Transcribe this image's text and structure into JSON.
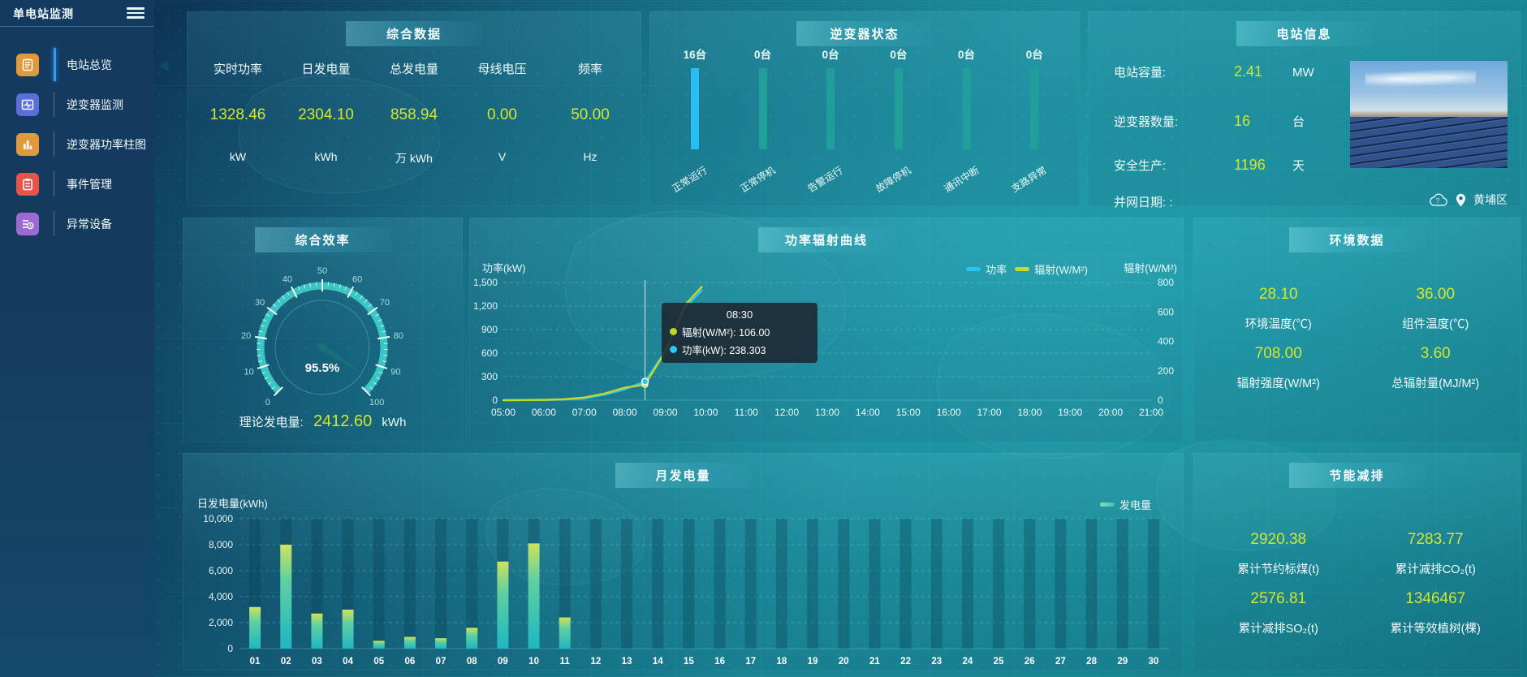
{
  "app": {
    "title": "单电站监测",
    "location": "黄埔区"
  },
  "sidebar": {
    "items": [
      {
        "id": "station-overview",
        "label": "电站总览",
        "icon": "document-icon",
        "color": "#e09a3c",
        "active": true
      },
      {
        "id": "inverter-monitor",
        "label": "逆变器监测",
        "icon": "monitor-pulse-icon",
        "color": "#5a6fd8",
        "active": false
      },
      {
        "id": "inverter-power-bars",
        "label": "逆变器功率柱图",
        "icon": "bar-chart-icon",
        "color": "#e09a3c",
        "active": false
      },
      {
        "id": "event-management",
        "label": "事件管理",
        "icon": "clipboard-icon",
        "color": "#e8534a",
        "active": false
      },
      {
        "id": "abnormal-devices",
        "label": "异常设备",
        "icon": "device-list-icon",
        "color": "#9b6bd3",
        "active": false
      }
    ]
  },
  "summary": {
    "title": "综合数据",
    "metrics": [
      {
        "label": "实时功率",
        "value": "1328.46",
        "unit": "kW"
      },
      {
        "label": "日发电量",
        "value": "2304.10",
        "unit": "kWh"
      },
      {
        "label": "总发电量",
        "value": "858.94",
        "unit": "万 kWh"
      },
      {
        "label": "母线电压",
        "value": "0.00",
        "unit": "V"
      },
      {
        "label": "频率",
        "value": "50.00",
        "unit": "Hz"
      }
    ]
  },
  "inverter_status": {
    "title": "逆变器状态",
    "unit_suffix": "台",
    "items": [
      {
        "count": "16台",
        "label": "正常运行",
        "highlight": true
      },
      {
        "count": "0台",
        "label": "正常停机",
        "highlight": false
      },
      {
        "count": "0台",
        "label": "告警运行",
        "highlight": false
      },
      {
        "count": "0台",
        "label": "故障停机",
        "highlight": false
      },
      {
        "count": "0台",
        "label": "通讯中断",
        "highlight": false
      },
      {
        "count": "0台",
        "label": "支路异常",
        "highlight": false
      }
    ]
  },
  "station_info": {
    "title": "电站信息",
    "rows": [
      {
        "label": "电站容量:",
        "value": "2.41",
        "unit": "MW"
      },
      {
        "label": "逆变器数量:",
        "value": "16",
        "unit": "台"
      },
      {
        "label": "安全生产:",
        "value": "1196",
        "unit": "天"
      },
      {
        "label": "并网日期: :",
        "value": "",
        "unit": ""
      }
    ]
  },
  "efficiency": {
    "title": "综合效率",
    "value_display": "95.5%",
    "theoretical_label": "理论发电量:",
    "theoretical_value": "2412.60",
    "theoretical_unit": "kWh"
  },
  "power_curve": {
    "title": "功率辐射曲线"
  },
  "monthly": {
    "title": "月发电量"
  },
  "environment": {
    "title": "环境数据",
    "metrics": [
      {
        "value": "28.10",
        "label": "环境温度(℃)"
      },
      {
        "value": "36.00",
        "label": "组件温度(℃)"
      },
      {
        "value": "708.00",
        "label": "辐射强度(W/M²)"
      },
      {
        "value": "3.60",
        "label": "总辐射量(MJ/M²)"
      }
    ]
  },
  "saving": {
    "title": "节能减排",
    "metrics": [
      {
        "value": "2920.38",
        "label": "累计节约标煤(t)"
      },
      {
        "value": "7283.77",
        "label": "累计减排CO₂(t)"
      },
      {
        "value": "2576.81",
        "label": "累计减排SO₂(t)"
      },
      {
        "value": "1346467",
        "label": "累计等效植树(棵)"
      }
    ]
  },
  "colors": {
    "value_yellow": "#d3e62e",
    "bar_active_blue": "#29bdf5",
    "bar_teal": "#1f9e9a",
    "line_power": "#2ec7f0",
    "line_radiation": "#c3d62a",
    "gauge_teal": "#3bc6c3"
  },
  "chart_data": [
    {
      "id": "efficiency-gauge",
      "type": "gauge",
      "title": "综合效率",
      "min": 0,
      "max": 100,
      "tick_step": 10,
      "value": 95.5,
      "value_display": "95.5%",
      "color": "#3bc6c3"
    },
    {
      "id": "inverter-status-bars",
      "type": "bar",
      "title": "逆变器状态",
      "categories": [
        "正常运行",
        "正常停机",
        "告警运行",
        "故障停机",
        "通讯中断",
        "支路异常"
      ],
      "values": [
        16,
        0,
        0,
        0,
        0,
        0
      ],
      "unit": "台"
    },
    {
      "id": "power-radiation-curve",
      "type": "line",
      "title": "功率辐射曲线",
      "x_hours": [
        5,
        5.5,
        6,
        6.5,
        7,
        7.5,
        8,
        8.5,
        9,
        9.5,
        9.9
      ],
      "series": [
        {
          "name": "功率",
          "axis": "left",
          "unit": "kW",
          "color": "#2ec7f0",
          "values": [
            0,
            1,
            3,
            8,
            25,
            70,
            140,
            238.303,
            620,
            1180,
            1400
          ]
        },
        {
          "name": "辐射(W/M²)",
          "axis": "right",
          "unit": "W/M²",
          "color": "#c3d62a",
          "values": [
            0,
            1,
            2,
            6,
            18,
            45,
            85,
            106,
            330,
            650,
            770
          ]
        }
      ],
      "x_range": [
        5,
        21
      ],
      "x_ticks": [
        "05:00",
        "06:00",
        "07:00",
        "08:00",
        "09:00",
        "10:00",
        "11:00",
        "12:00",
        "13:00",
        "14:00",
        "15:00",
        "16:00",
        "17:00",
        "18:00",
        "19:00",
        "20:00",
        "21:00"
      ],
      "left_axis": {
        "name": "功率(kW)",
        "max": 1500,
        "ticks": [
          "1,500",
          "1,200",
          "900",
          "600",
          "300",
          "0"
        ]
      },
      "right_axis": {
        "name": "辐射(W/M²)",
        "max": 800,
        "ticks": [
          "800",
          "600",
          "400",
          "200",
          "0"
        ]
      },
      "legend": [
        {
          "name": "功率",
          "color": "#29c3f6"
        },
        {
          "name": "辐射(W/M²)",
          "color": "#c8d929"
        }
      ],
      "tooltip": {
        "time": "08:30",
        "x_hour": 8.5,
        "rows": [
          {
            "name": "辐射(W/M²)",
            "value": "106.00",
            "color": "#c3d62a"
          },
          {
            "name": "功率(kW)",
            "value": "238.303",
            "color": "#2ec7f0"
          }
        ]
      },
      "grid": true,
      "legend_position": "top-right"
    },
    {
      "id": "monthly-generation",
      "type": "bar",
      "title": "月发电量",
      "ylabel": "日发电量(kWh)",
      "ylim": [
        0,
        10000
      ],
      "y_ticks": [
        "10,000",
        "8,000",
        "6,000",
        "4,000",
        "2,000",
        "0"
      ],
      "legend": [
        {
          "name": "发电量",
          "color": "#5fd0a0"
        }
      ],
      "categories": [
        "01",
        "02",
        "03",
        "04",
        "05",
        "06",
        "07",
        "08",
        "09",
        "10",
        "11",
        "12",
        "13",
        "14",
        "15",
        "16",
        "17",
        "18",
        "19",
        "20",
        "21",
        "22",
        "23",
        "24",
        "25",
        "26",
        "27",
        "28",
        "29",
        "30"
      ],
      "values": [
        3200,
        8000,
        2700,
        3000,
        600,
        900,
        800,
        1600,
        6700,
        8100,
        2400,
        0,
        0,
        0,
        0,
        0,
        0,
        0,
        0,
        0,
        0,
        0,
        0,
        0,
        0,
        0,
        0,
        0,
        0,
        0
      ],
      "grid": true,
      "legend_position": "top-right"
    }
  ]
}
